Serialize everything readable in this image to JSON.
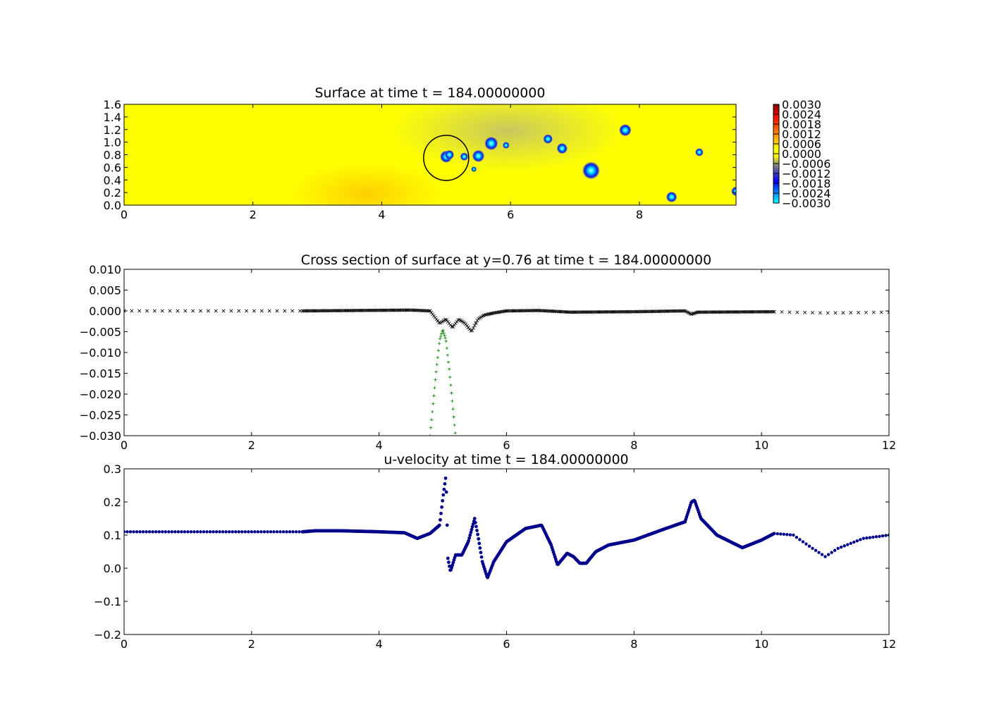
{
  "chart_data": [
    {
      "type": "heatmap",
      "title": "Surface at time t =   184.00000000",
      "xlim": [
        0,
        9.5
      ],
      "ylim": [
        0,
        1.6
      ],
      "x_ticks": [
        "0",
        "2",
        "4",
        "6",
        "8"
      ],
      "y_ticks": [
        "0.0",
        "0.2",
        "0.4",
        "0.6",
        "0.8",
        "1.0",
        "1.2",
        "1.4",
        "1.6"
      ],
      "colormap": "jet-like",
      "colorbar": {
        "range": [
          -0.003,
          0.003
        ],
        "tick_labels": [
          "0.0030",
          "0.0024",
          "0.0018",
          "0.0012",
          "0.0006",
          "0.0000",
          "−0.0006",
          "−0.0012",
          "−0.0018",
          "−0.0024",
          "−0.0030"
        ]
      },
      "features": {
        "circle": {
          "x": 5.0,
          "y": 0.75,
          "r": 0.35
        },
        "depressions": [
          {
            "x": 5.0,
            "y": 0.77
          },
          {
            "x": 5.05,
            "y": 0.8
          },
          {
            "x": 5.28,
            "y": 0.77
          },
          {
            "x": 5.43,
            "y": 0.57
          },
          {
            "x": 5.5,
            "y": 0.78
          },
          {
            "x": 5.7,
            "y": 0.98
          },
          {
            "x": 5.93,
            "y": 0.95
          },
          {
            "x": 6.58,
            "y": 1.05
          },
          {
            "x": 6.8,
            "y": 0.9
          },
          {
            "x": 7.25,
            "y": 0.55
          },
          {
            "x": 7.78,
            "y": 1.19
          },
          {
            "x": 8.5,
            "y": 0.13
          },
          {
            "x": 8.93,
            "y": 0.84
          },
          {
            "x": 9.5,
            "y": 0.22
          }
        ]
      }
    },
    {
      "type": "scatter",
      "title": "Cross section of surface at y=0.76 at time t =   184.00000000",
      "xlim": [
        0,
        12
      ],
      "ylim": [
        -0.03,
        0.01
      ],
      "x_ticks": [
        "0",
        "2",
        "4",
        "6",
        "8",
        "10",
        "12"
      ],
      "y_ticks": [
        "0.010",
        "0.005",
        "0.000",
        "−0.005",
        "−0.010",
        "−0.015",
        "−0.020",
        "−0.025",
        "−0.030"
      ],
      "series": [
        {
          "marker": "x",
          "color": "#000000",
          "x": [
            0,
            2.8,
            4.5,
            4.8,
            4.95,
            5.05,
            5.15,
            5.25,
            5.35,
            5.45,
            5.55,
            5.65,
            5.8,
            6.0,
            6.5,
            7.0,
            8.0,
            8.8,
            8.9,
            9.0,
            10.2,
            11.0,
            12.0
          ],
          "y": [
            0,
            0,
            0.0002,
            0,
            -0.003,
            -0.002,
            -0.004,
            -0.002,
            -0.003,
            -0.005,
            -0.002,
            -0.001,
            -0.0005,
            0,
            0.0001,
            -0.0003,
            -0.0002,
            0,
            -0.0008,
            -0.0003,
            -0.0002,
            -0.0005,
            -0.0003
          ]
        },
        {
          "marker": "+",
          "color": "#008000",
          "x": [
            4.8,
            4.85,
            4.9,
            4.95,
            5.0,
            5.05,
            5.1,
            5.15,
            5.2
          ],
          "y": [
            -0.03,
            -0.022,
            -0.014,
            -0.007,
            -0.0045,
            -0.007,
            -0.014,
            -0.022,
            -0.03
          ]
        }
      ]
    },
    {
      "type": "scatter",
      "title": "u-velocity at time t =   184.00000000",
      "xlim": [
        0,
        12
      ],
      "ylim": [
        -0.2,
        0.3
      ],
      "x_ticks": [
        "0",
        "2",
        "4",
        "6",
        "8",
        "10",
        "12"
      ],
      "y_ticks": [
        "0.3",
        "0.2",
        "0.1",
        "0.0",
        "−0.1",
        "−0.2"
      ],
      "series": [
        {
          "marker": "o",
          "color": "#00008b",
          "x": [
            0,
            2.8,
            3.0,
            3.4,
            4.0,
            4.4,
            4.6,
            4.8,
            4.95,
            5.0,
            5.05,
            5.08,
            5.12,
            5.2,
            5.3,
            5.4,
            5.5,
            5.55,
            5.62,
            5.7,
            5.8,
            6.0,
            6.3,
            6.55,
            6.7,
            6.8,
            6.95,
            7.05,
            7.15,
            7.25,
            7.4,
            7.6,
            8.0,
            8.5,
            8.8,
            8.9,
            8.95,
            9.05,
            9.3,
            9.7,
            10.0,
            10.2,
            10.5,
            10.8,
            11.0,
            11.2,
            11.6,
            12.0
          ],
          "y": [
            0.11,
            0.11,
            0.113,
            0.113,
            0.11,
            0.107,
            0.09,
            0.105,
            0.13,
            0.21,
            0.28,
            0.03,
            -0.01,
            0.04,
            0.04,
            0.08,
            0.15,
            0.1,
            0.02,
            -0.03,
            0.02,
            0.08,
            0.12,
            0.13,
            0.07,
            0.01,
            0.045,
            0.035,
            0.015,
            0.015,
            0.05,
            0.07,
            0.085,
            0.12,
            0.14,
            0.2,
            0.205,
            0.15,
            0.1,
            0.062,
            0.085,
            0.105,
            0.1,
            0.06,
            0.035,
            0.06,
            0.09,
            0.1
          ]
        }
      ]
    }
  ]
}
